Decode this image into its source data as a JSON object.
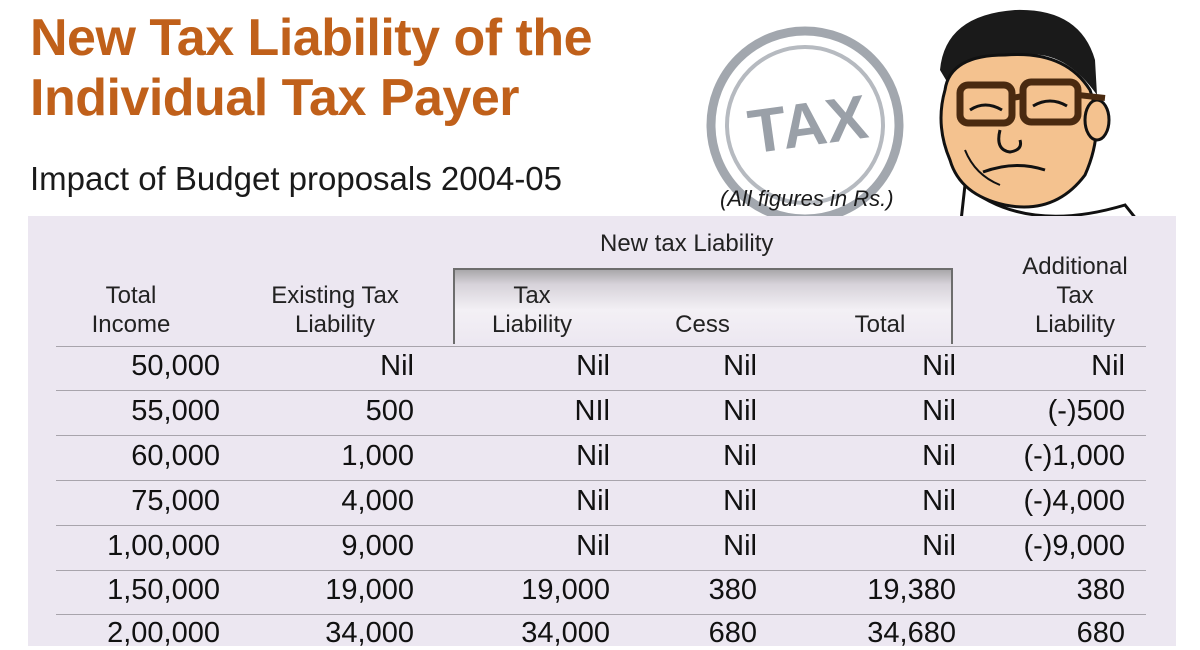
{
  "header": {
    "title_line1": "New Tax Liability of the",
    "title_line2": "Individual Tax Payer",
    "subtitle": "Impact of Budget proposals 2004-05",
    "note": "(All figures in Rs.)",
    "stamp_text": "TAX"
  },
  "colors": {
    "title": "#c0601a",
    "panel_background": "#ece7f1",
    "stamp": "#9aa0a8"
  },
  "table": {
    "group_label": "New tax Liability",
    "columns": {
      "total_income": [
        "Total",
        "Income"
      ],
      "existing": [
        "Existing Tax",
        "Liability"
      ],
      "new_tax": [
        "Tax",
        "Liability"
      ],
      "cess": [
        "Cess"
      ],
      "total": [
        "Total"
      ],
      "additional": [
        "Additional",
        "Tax",
        "Liability"
      ]
    },
    "rows": [
      [
        "50,000",
        "Nil",
        "Nil",
        "Nil",
        "Nil",
        "Nil"
      ],
      [
        "55,000",
        "500",
        "NIl",
        "Nil",
        "Nil",
        "(-)500"
      ],
      [
        "60,000",
        "1,000",
        "Nil",
        "Nil",
        "Nil",
        "(-)1,000"
      ],
      [
        "75,000",
        "4,000",
        "Nil",
        "Nil",
        "Nil",
        "(-)4,000"
      ],
      [
        "1,00,000",
        "9,000",
        "Nil",
        "Nil",
        "Nil",
        "(-)9,000"
      ],
      [
        "1,50,000",
        "19,000",
        "19,000",
        "380",
        "19,380",
        "380"
      ],
      [
        "2,00,000",
        "34,000",
        "34,000",
        "680",
        "34,680",
        "680"
      ]
    ]
  }
}
